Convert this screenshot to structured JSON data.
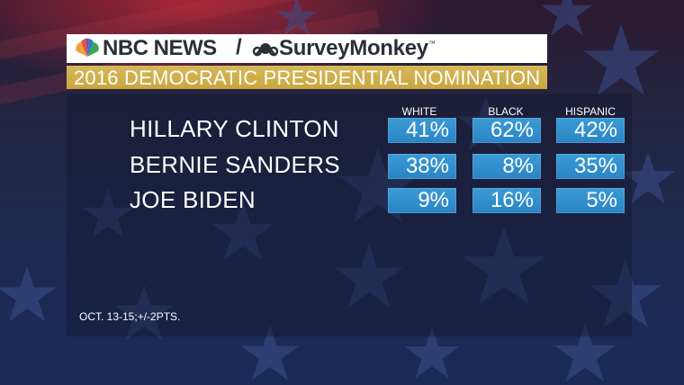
{
  "brand": {
    "nbc": "NBC NEWS",
    "separator": "/",
    "surveymonkey": "SurveyMonkey",
    "trademark": "™"
  },
  "colors": {
    "cell_blue": "#2f8fcf",
    "title_gold": "#cfae4c",
    "header_white": "#ffffff"
  },
  "chart_data": {
    "type": "table",
    "title": "2016 DEMOCRATIC PRESIDENTIAL NOMINATION",
    "columns": [
      "WHITE",
      "BLACK",
      "HISPANIC"
    ],
    "rows": [
      {
        "name": "HILLARY CLINTON",
        "values": [
          "41%",
          "62%",
          "42%"
        ]
      },
      {
        "name": "BERNIE SANDERS",
        "values": [
          "38%",
          "8%",
          "35%"
        ]
      },
      {
        "name": "JOE BIDEN",
        "values": [
          "9%",
          "16%",
          "5%"
        ]
      }
    ],
    "footnote": "OCT. 13-15;+/-2PTS."
  }
}
